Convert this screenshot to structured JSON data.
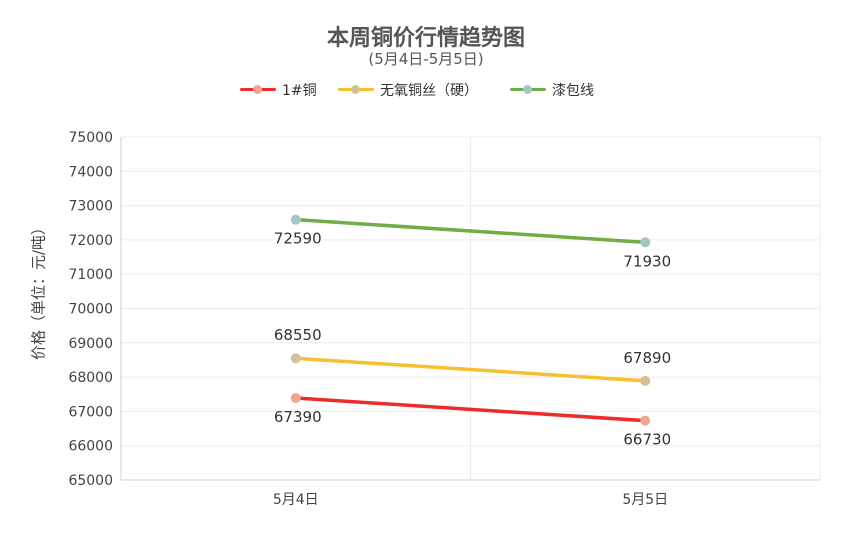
{
  "chart_data": {
    "type": "line",
    "title": "本周铜价行情趋势图",
    "subtitle": "(5月4日-5月5日)",
    "xlabel": "",
    "ylabel": "价格（单位：元/吨）",
    "categories": [
      "5月4日",
      "5月5日"
    ],
    "ylim": [
      65000,
      75000
    ],
    "ytick_step": 1000,
    "grid": true,
    "legend_position": "top-center",
    "series": [
      {
        "name": "1#铜",
        "values": [
          67390,
          66730
        ],
        "color": "#ee2b2b",
        "marker_color": "#f0a591"
      },
      {
        "name": "无氧铜丝（硬）",
        "values": [
          68550,
          67890
        ],
        "color": "#f7c02f",
        "marker_color": "#d4bf98"
      },
      {
        "name": "漆包线",
        "values": [
          72590,
          71930
        ],
        "color": "#70ad47",
        "marker_color": "#a6c6c5"
      }
    ]
  }
}
